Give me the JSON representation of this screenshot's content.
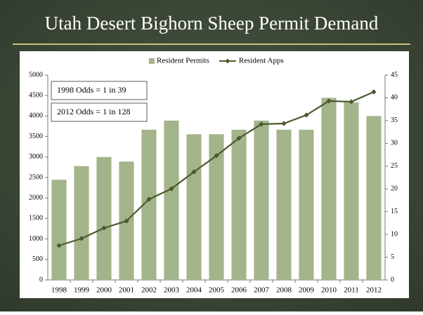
{
  "chart_data": {
    "type": "bar",
    "title": "Utah Desert Bighorn Sheep Permit Demand",
    "categories": [
      "1998",
      "1999",
      "2000",
      "2001",
      "2002",
      "2003",
      "2004",
      "2005",
      "2006",
      "2007",
      "2008",
      "2009",
      "2010",
      "2011",
      "2012"
    ],
    "series": [
      {
        "name": "Resident Permits",
        "color": "#a3b48b",
        "axis": "y2",
        "values": [
          22,
          25,
          27,
          26,
          33,
          35,
          32,
          32,
          33,
          35,
          33,
          33,
          40,
          39,
          36
        ]
      },
      {
        "name": "Resident Apps",
        "color": "#4b5a2c",
        "type": "line",
        "values": [
          839,
          1010,
          1267,
          1438,
          1969,
          2226,
          2637,
          3031,
          3459,
          3801,
          3818,
          4024,
          4366,
          4350,
          4589
        ]
      }
    ],
    "ylim": [
      0,
      5000
    ],
    "yticks": [
      0,
      500,
      1000,
      1500,
      2000,
      2500,
      3000,
      3500,
      4000,
      4500,
      5000
    ],
    "y2lim": [
      0,
      45
    ],
    "y2ticks": [
      0,
      5,
      10,
      15,
      20,
      25,
      30,
      35,
      40,
      45
    ],
    "annotations": [
      "1998 Odds = 1 in 39",
      "2012 Odds = 1 in 128"
    ],
    "legend": "top"
  }
}
